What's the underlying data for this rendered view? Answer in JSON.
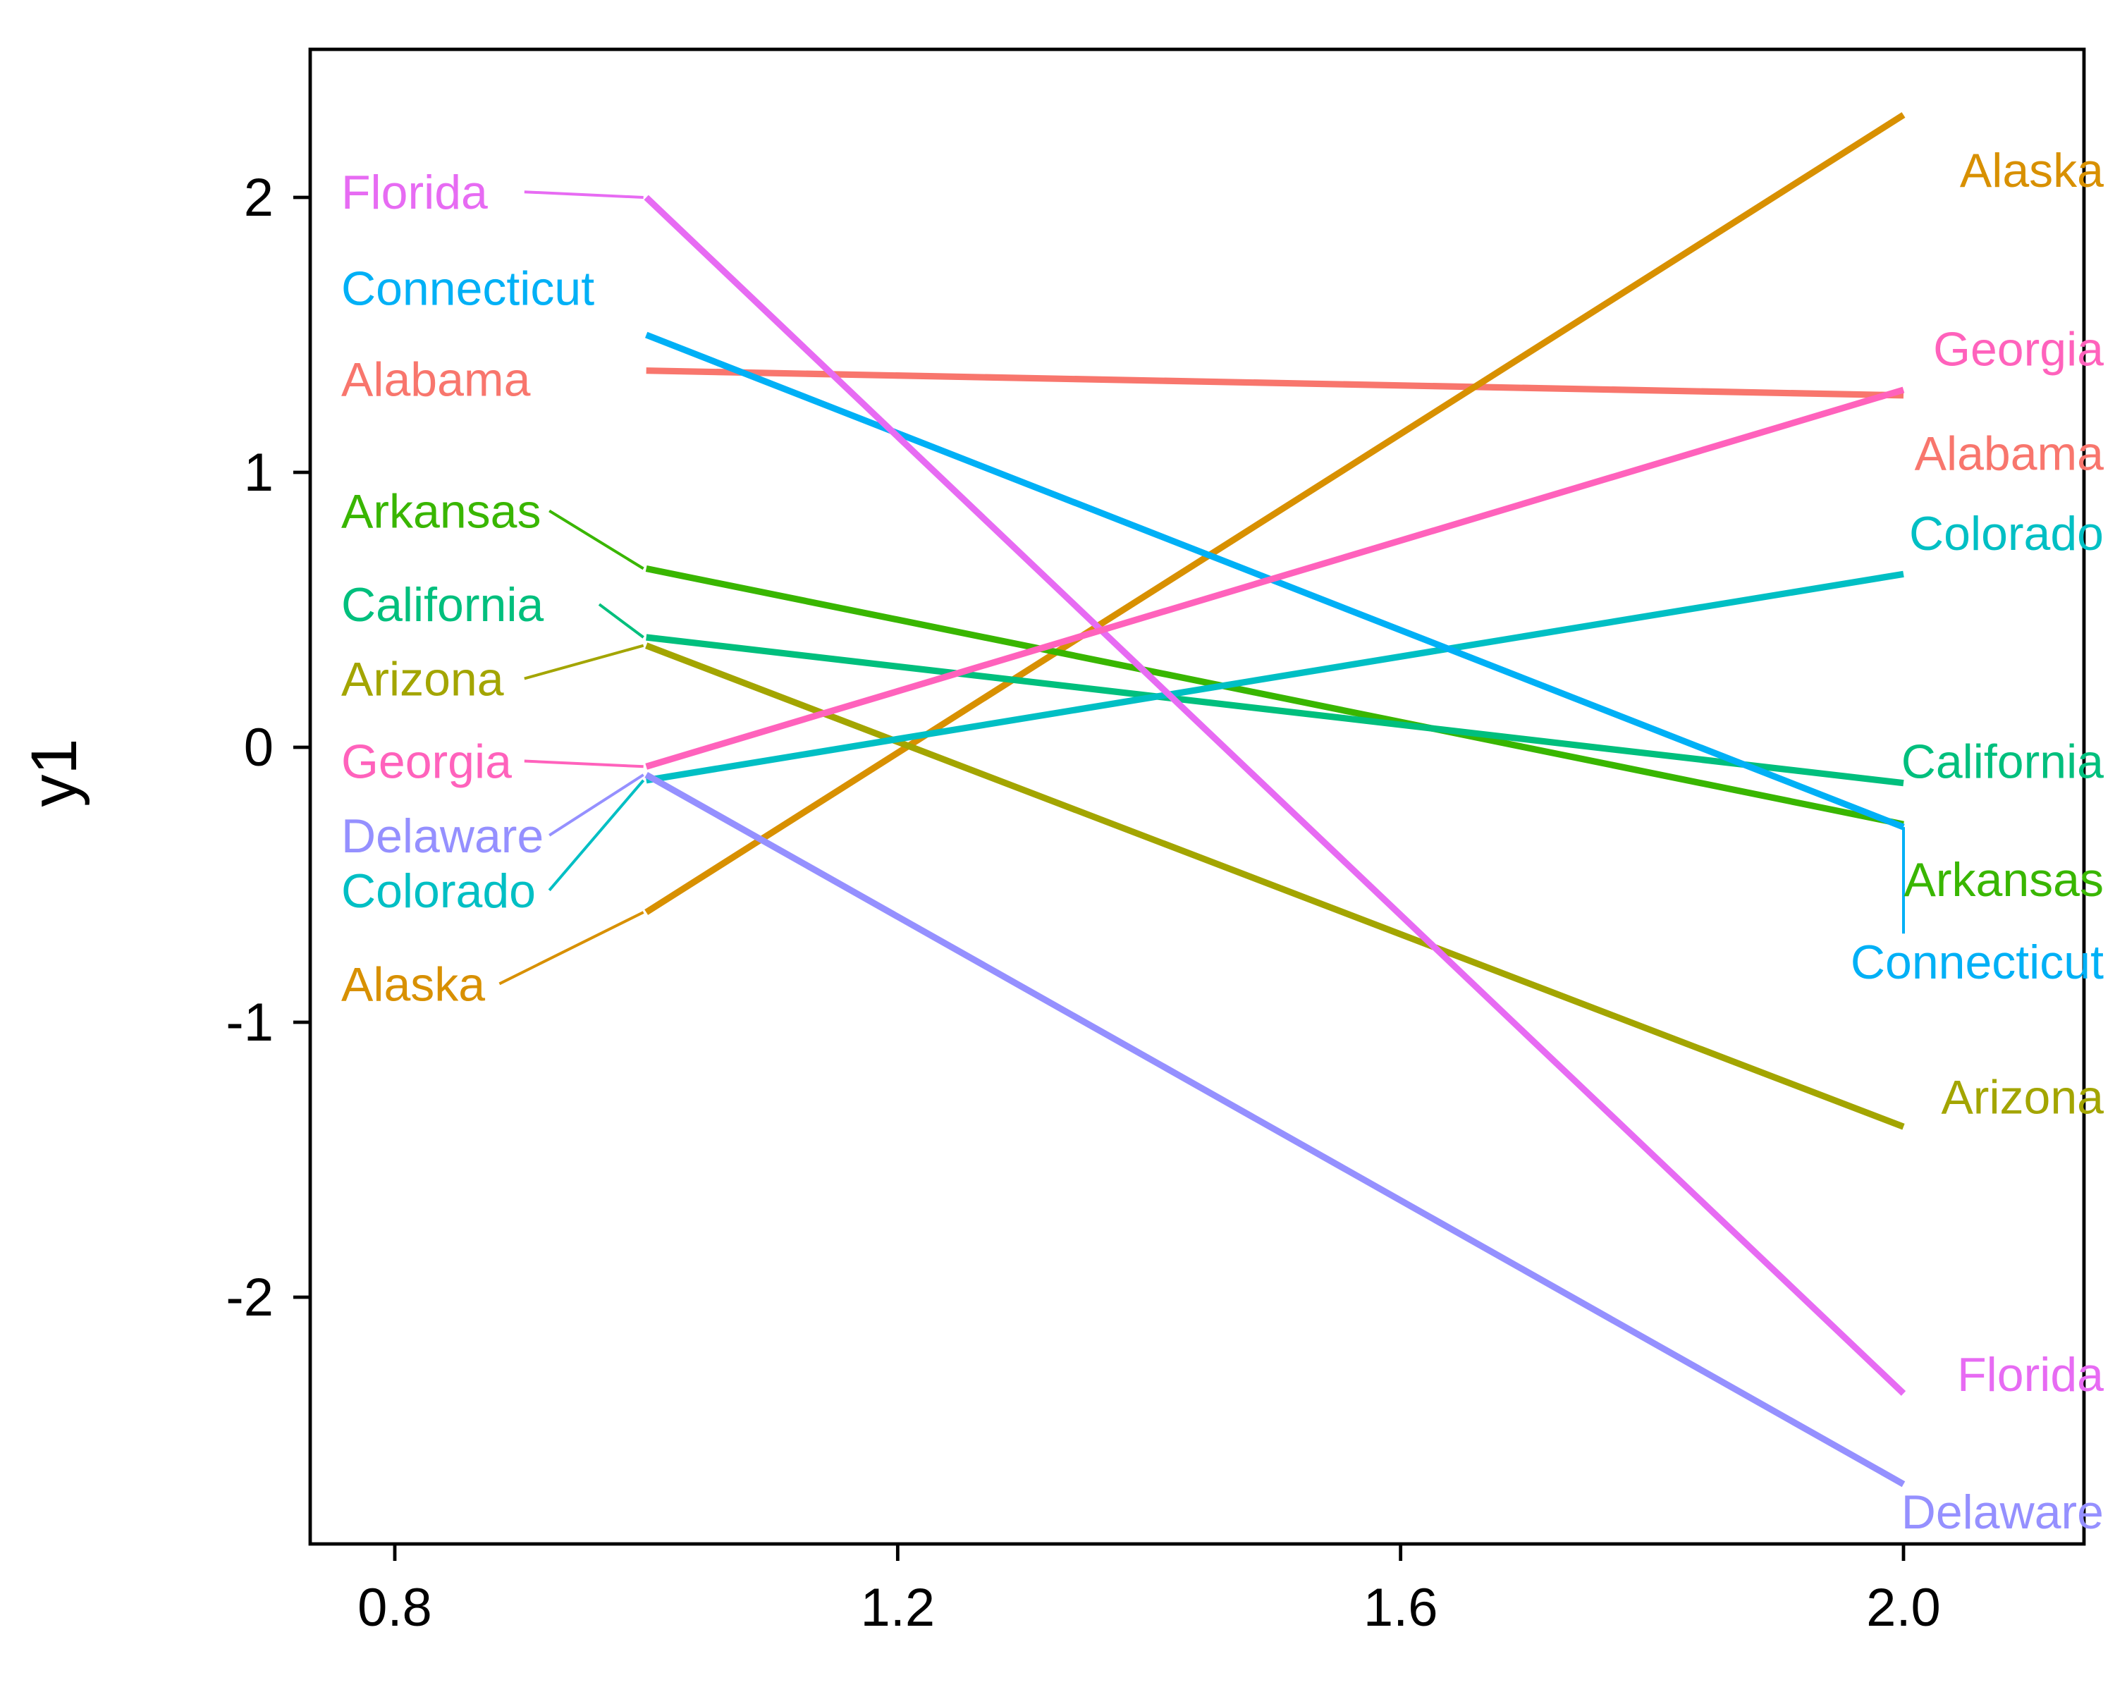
{
  "figure": {
    "ylabel": "y1",
    "background": "#FFFFFF",
    "panel_border_color": "#000000",
    "x_tick_labels": [
      "0.8",
      "1.2",
      "1.6",
      "2.0"
    ],
    "x_tick_values": [
      0.8,
      1.2,
      1.6,
      2.0
    ],
    "y_tick_labels": [
      "2",
      "1",
      "0",
      "-1",
      "-2"
    ],
    "y_tick_values": [
      2,
      1,
      0,
      -1,
      -2
    ]
  },
  "chart_data": {
    "type": "line",
    "title": "",
    "xlabel": "",
    "ylabel": "y1",
    "x": [
      1,
      2
    ],
    "xlim": [
      0.73,
      2.15
    ],
    "ylim": [
      -2.9,
      2.55
    ],
    "grid": false,
    "legend_position": "direct-labels-both-ends",
    "series": [
      {
        "name": "Alabama",
        "color": "#F8766D",
        "values": [
          1.37,
          1.28
        ],
        "left_label_y": 1.34,
        "right_label_y": 1.07,
        "left_leader": false,
        "right_leader": false
      },
      {
        "name": "Alaska",
        "color": "#D89000",
        "values": [
          -0.6,
          2.3
        ],
        "left_label_y": -0.86,
        "right_label_y": 2.1,
        "left_leader": true,
        "right_leader": false
      },
      {
        "name": "Arizona",
        "color": "#A3A500",
        "values": [
          0.37,
          -1.38
        ],
        "left_label_y": 0.25,
        "right_label_y": -1.27,
        "left_leader": true,
        "right_leader": false
      },
      {
        "name": "Arkansas",
        "color": "#39B600",
        "values": [
          0.65,
          -0.28
        ],
        "left_label_y": 0.86,
        "right_label_y": -0.48,
        "left_leader": true,
        "right_leader": false
      },
      {
        "name": "California",
        "color": "#00BF7D",
        "values": [
          0.4,
          -0.13
        ],
        "left_label_y": 0.52,
        "right_label_y": -0.05,
        "left_leader": true,
        "right_leader": false
      },
      {
        "name": "Colorado",
        "color": "#00BFC4",
        "values": [
          -0.12,
          0.63
        ],
        "left_label_y": -0.52,
        "right_label_y": 0.78,
        "left_leader": true,
        "right_leader": false
      },
      {
        "name": "Connecticut",
        "color": "#00B0F6",
        "values": [
          1.5,
          -0.29
        ],
        "left_label_y": 1.67,
        "right_label_y": -0.78,
        "left_leader": false,
        "right_leader": true
      },
      {
        "name": "Delaware",
        "color": "#9590FF",
        "values": [
          -0.1,
          -2.68
        ],
        "left_label_y": -0.32,
        "right_label_y": -2.78,
        "left_leader": true,
        "right_leader": false
      },
      {
        "name": "Florida",
        "color": "#E76BF3",
        "values": [
          2.0,
          -2.35
        ],
        "left_label_y": 2.02,
        "right_label_y": -2.28,
        "left_leader": true,
        "right_leader": false
      },
      {
        "name": "Georgia",
        "color": "#FF62BC",
        "values": [
          -0.07,
          1.3
        ],
        "left_label_y": -0.05,
        "right_label_y": 1.45,
        "left_leader": true,
        "right_leader": false
      }
    ]
  }
}
